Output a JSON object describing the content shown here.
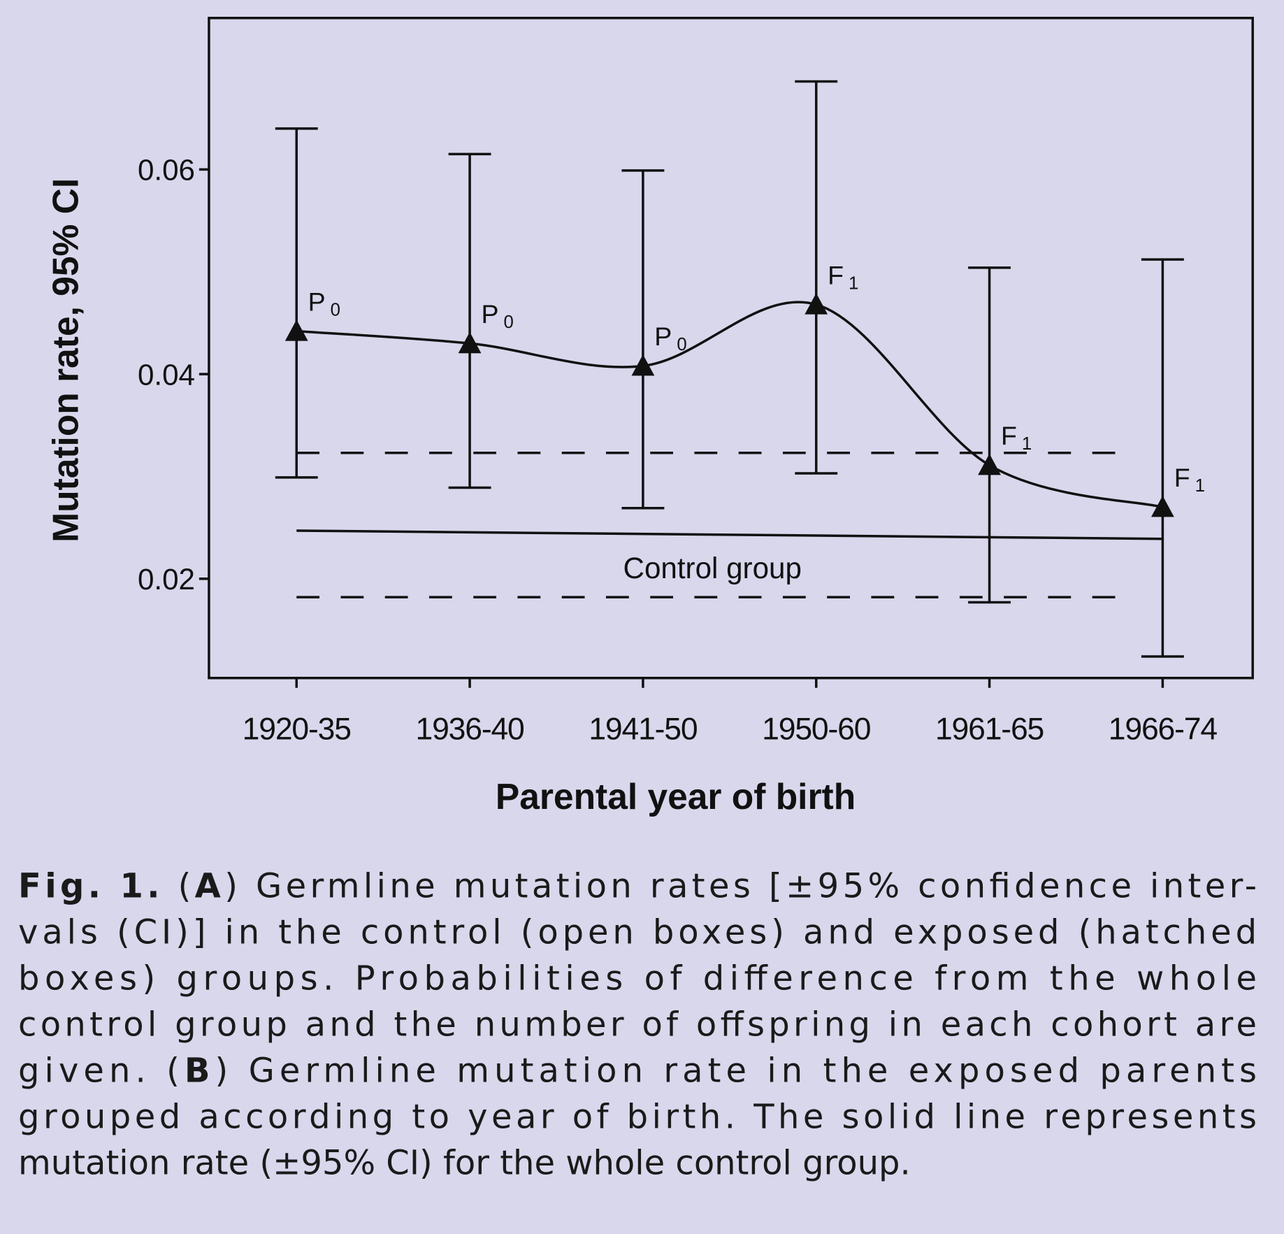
{
  "chart_data": {
    "type": "line",
    "title": "",
    "xlabel": "Parental year of birth",
    "ylabel": "Mutation rate, 95% CI",
    "ylim": [
      0.0103,
      0.0748
    ],
    "yticks": [
      0.02,
      0.04,
      0.06
    ],
    "ytick_labels": [
      "0.02",
      "0.04",
      "0.06"
    ],
    "categories": [
      "1920-35",
      "1936-40",
      "1941-50",
      "1950-60",
      "1961-65",
      "1966-74"
    ],
    "series": [
      {
        "name": "Exposed parents",
        "values": [
          0.0442,
          0.043,
          0.0408,
          0.0468,
          0.0311,
          0.027
        ],
        "ci_upper": [
          0.064,
          0.0615,
          0.0599,
          0.0686,
          0.0504,
          0.0512
        ],
        "ci_lower": [
          0.0299,
          0.0289,
          0.0269,
          0.0303,
          0.0177,
          0.0124
        ],
        "point_labels": [
          {
            "main": "P",
            "sub": "0"
          },
          {
            "main": "P",
            "sub": "0"
          },
          {
            "main": "P",
            "sub": "0"
          },
          {
            "main": "F",
            "sub": "1"
          },
          {
            "main": "F",
            "sub": "1"
          },
          {
            "main": "F",
            "sub": "1"
          }
        ]
      }
    ],
    "control": {
      "label": "Control group",
      "rate_start": 0.0247,
      "rate_end": 0.0239,
      "ci_upper": 0.0323,
      "ci_lower": 0.0182
    },
    "grid": false,
    "legend": "none"
  },
  "caption": {
    "lines": [
      [
        {
          "b": "Fig. 1."
        },
        " (",
        {
          "b": "A"
        },
        ") Germline mutation rates [±95% confidence inter-"
      ],
      [
        "vals (CI)] in the control (open boxes) and exposed (hatched"
      ],
      [
        "boxes) groups. Probabilities of difference from the whole"
      ],
      [
        "control group and the number of offspring in each cohort are"
      ],
      [
        "given. (",
        {
          "b": "B"
        },
        ") Germline mutation rate in the exposed parents"
      ],
      [
        "grouped according to year of birth. The solid line represents"
      ],
      [
        "mutation rate (±95% CI) for the whole control group."
      ]
    ]
  }
}
